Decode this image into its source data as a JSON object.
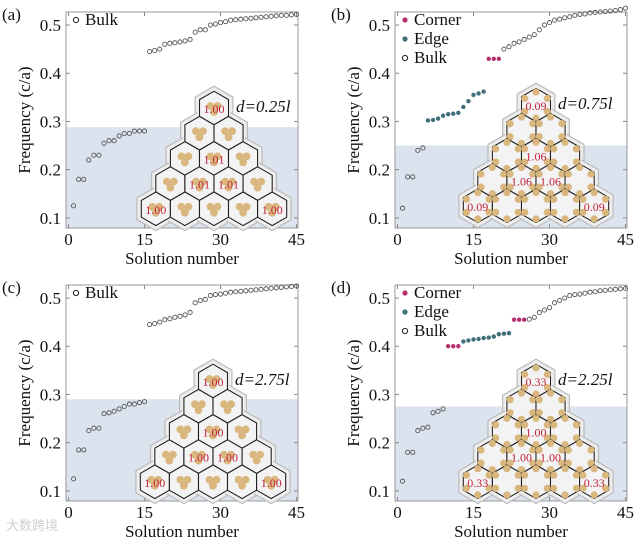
{
  "colors": {
    "corner": "#b5306e",
    "edge": "#3f6f78",
    "bulk": "#555555",
    "band": "#dbe3ef",
    "hex_label": "#c0203a",
    "particle": "#d9b77e"
  },
  "watermark": "大数跨境",
  "chart_data": [
    {
      "type": "scatter",
      "panel_label": "(a)",
      "xlabel": "Solution number",
      "ylabel": "Frequency (c/a)",
      "xlim": [
        -0.5,
        45.3
      ],
      "ylim": [
        0.079,
        0.527
      ],
      "xticks": [
        0,
        15,
        30,
        45
      ],
      "yticks": [
        0.1,
        0.2,
        0.3,
        0.4,
        0.5
      ],
      "band_upper": 0.288,
      "annotation": "d=0.25l",
      "legend": [
        "Bulk"
      ],
      "series": [
        {
          "name": "Bulk",
          "x": [
            1,
            2,
            3,
            4,
            5,
            6,
            7,
            8,
            9,
            10,
            11,
            12,
            13,
            14,
            15,
            16,
            17,
            18,
            19,
            20,
            21,
            22,
            23,
            24,
            25,
            26,
            27,
            28,
            29,
            30,
            31,
            32,
            33,
            34,
            35,
            36,
            37,
            38,
            39,
            40,
            41,
            42,
            43,
            44,
            45
          ],
          "y": [
            0.125,
            0.18,
            0.18,
            0.22,
            0.23,
            0.23,
            0.255,
            0.26,
            0.26,
            0.27,
            0.275,
            0.275,
            0.28,
            0.28,
            0.28,
            0.445,
            0.447,
            0.45,
            0.46,
            0.462,
            0.463,
            0.465,
            0.467,
            0.47,
            0.485,
            0.49,
            0.49,
            0.5,
            0.502,
            0.505,
            0.507,
            0.51,
            0.511,
            0.512,
            0.513,
            0.514,
            0.515,
            0.516,
            0.517,
            0.518,
            0.519,
            0.52,
            0.52,
            0.521,
            0.522
          ]
        }
      ],
      "inset": {
        "particles": "trimer",
        "labels": {
          "0-0": "1.00",
          "2-1": "1.01",
          "3-1": "1.01",
          "3-2": "1.01",
          "4-0": "1.00",
          "4-4": "1.00"
        }
      }
    },
    {
      "type": "scatter",
      "panel_label": "(b)",
      "xlabel": "Solution number",
      "ylabel": "Frequency (c/a)",
      "xlim": [
        -0.5,
        45.3
      ],
      "ylim": [
        0.079,
        0.527
      ],
      "xticks": [
        0,
        15,
        30,
        45
      ],
      "yticks": [
        0.1,
        0.2,
        0.3,
        0.4,
        0.5
      ],
      "band_upper": 0.25,
      "annotation": "d=0.75l",
      "legend": [
        "Corner",
        "Edge",
        "Bulk"
      ],
      "series": [
        {
          "name": "Corner",
          "x": [
            18,
            19,
            20
          ],
          "y": [
            0.43,
            0.43,
            0.43
          ]
        },
        {
          "name": "Edge",
          "x": [
            6,
            7,
            8,
            9,
            10,
            11,
            12,
            13,
            14,
            15,
            16,
            17
          ],
          "y": [
            0.302,
            0.303,
            0.306,
            0.312,
            0.315,
            0.316,
            0.318,
            0.33,
            0.342,
            0.355,
            0.358,
            0.362
          ]
        },
        {
          "name": "Bulk",
          "x": [
            1,
            2,
            3,
            4,
            5,
            21,
            22,
            23,
            24,
            25,
            26,
            27,
            28,
            29,
            30,
            31,
            32,
            33,
            34,
            35,
            36,
            37,
            38,
            39,
            40,
            41,
            42,
            43,
            44,
            45
          ],
          "y": [
            0.12,
            0.185,
            0.185,
            0.24,
            0.245,
            0.45,
            0.455,
            0.462,
            0.465,
            0.47,
            0.475,
            0.48,
            0.49,
            0.5,
            0.505,
            0.51,
            0.512,
            0.515,
            0.517,
            0.52,
            0.522,
            0.523,
            0.525,
            0.526,
            0.527,
            0.528,
            0.529,
            0.53,
            0.532,
            0.535
          ]
        }
      ],
      "inset": {
        "particles": "split",
        "labels": {
          "0-0": "0.09",
          "2-1": "1.06",
          "3-1": "1.06",
          "3-2": "1.06",
          "4-0": "0.09",
          "4-4": "0.09"
        }
      }
    },
    {
      "type": "scatter",
      "panel_label": "(c)",
      "xlabel": "Solution number",
      "ylabel": "Frequency (c/a)",
      "xlim": [
        -0.5,
        45.3
      ],
      "ylim": [
        0.079,
        0.527
      ],
      "xticks": [
        0,
        15,
        30,
        45
      ],
      "yticks": [
        0.1,
        0.2,
        0.3,
        0.4,
        0.5
      ],
      "band_upper": 0.29,
      "annotation": "d=2.75l",
      "legend": [
        "Bulk"
      ],
      "series": [
        {
          "name": "Bulk",
          "x": [
            1,
            2,
            3,
            4,
            5,
            6,
            7,
            8,
            9,
            10,
            11,
            12,
            13,
            14,
            15,
            16,
            17,
            18,
            19,
            20,
            21,
            22,
            23,
            24,
            25,
            26,
            27,
            28,
            29,
            30,
            31,
            32,
            33,
            34,
            35,
            36,
            37,
            38,
            39,
            40,
            41,
            42,
            43,
            44,
            45
          ],
          "y": [
            0.125,
            0.185,
            0.185,
            0.225,
            0.23,
            0.23,
            0.26,
            0.262,
            0.265,
            0.27,
            0.275,
            0.28,
            0.28,
            0.283,
            0.285,
            0.445,
            0.447,
            0.45,
            0.455,
            0.457,
            0.46,
            0.462,
            0.465,
            0.47,
            0.49,
            0.495,
            0.497,
            0.505,
            0.507,
            0.508,
            0.51,
            0.512,
            0.513,
            0.514,
            0.515,
            0.516,
            0.517,
            0.518,
            0.519,
            0.52,
            0.521,
            0.522,
            0.523,
            0.524,
            0.525
          ]
        }
      ],
      "inset": {
        "particles": "trimer",
        "labels": {
          "0-0": "1.00",
          "2-1": "1.00",
          "3-1": "1.00",
          "3-2": "1.00",
          "4-0": "1.00",
          "4-4": "1.00"
        }
      }
    },
    {
      "type": "scatter",
      "panel_label": "(d)",
      "xlabel": "Solution number",
      "ylabel": "Frequency (c/a)",
      "xlim": [
        -0.5,
        45.3
      ],
      "ylim": [
        0.079,
        0.527
      ],
      "xticks": [
        0,
        15,
        30,
        45
      ],
      "yticks": [
        0.1,
        0.2,
        0.3,
        0.4,
        0.5
      ],
      "band_upper": 0.275,
      "annotation": "d=2.25l",
      "legend": [
        "Corner",
        "Edge",
        "Bulk"
      ],
      "series": [
        {
          "name": "Corner",
          "x": [
            10,
            11,
            12,
            23,
            24,
            25
          ],
          "y": [
            0.4,
            0.4,
            0.4,
            0.455,
            0.455,
            0.455
          ]
        },
        {
          "name": "Edge",
          "x": [
            13,
            14,
            15,
            16,
            17,
            18,
            19,
            20,
            21,
            22
          ],
          "y": [
            0.41,
            0.412,
            0.414,
            0.415,
            0.417,
            0.418,
            0.42,
            0.425,
            0.426,
            0.427
          ]
        },
        {
          "name": "Bulk",
          "x": [
            1,
            2,
            3,
            4,
            5,
            6,
            7,
            8,
            9,
            26,
            27,
            28,
            29,
            30,
            31,
            32,
            33,
            34,
            35,
            36,
            37,
            38,
            39,
            40,
            41,
            42,
            43,
            44,
            45
          ],
          "y": [
            0.12,
            0.18,
            0.18,
            0.225,
            0.23,
            0.232,
            0.262,
            0.265,
            0.27,
            0.456,
            0.46,
            0.47,
            0.475,
            0.48,
            0.49,
            0.495,
            0.5,
            0.505,
            0.507,
            0.508,
            0.51,
            0.512,
            0.513,
            0.515,
            0.516,
            0.517,
            0.518,
            0.519,
            0.52
          ]
        }
      ],
      "inset": {
        "particles": "split",
        "labels": {
          "0-0": "0.33",
          "2-1": "1.00",
          "3-1": "1.00",
          "3-2": "1.00",
          "4-0": "0.33",
          "4-4": "0.33"
        }
      }
    }
  ]
}
